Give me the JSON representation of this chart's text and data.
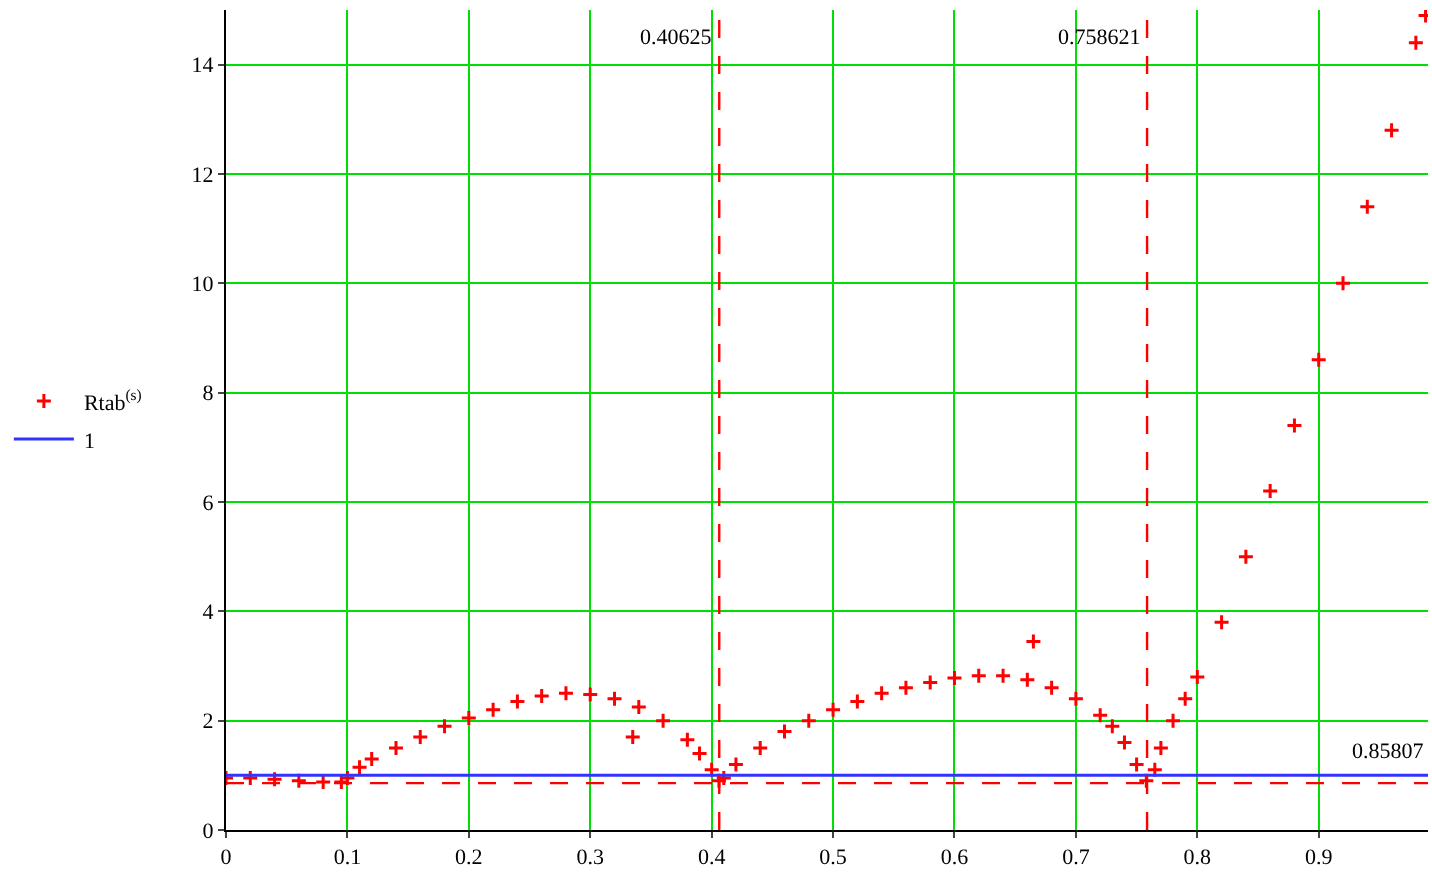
{
  "chart_data": {
    "type": "scatter",
    "series": [
      {
        "name": "Rtab$^{(s)}$",
        "color": "#ff0000",
        "marker": "cross",
        "x": [
          0.0,
          0.02,
          0.04,
          0.06,
          0.08,
          0.095,
          0.1,
          0.11,
          0.12,
          0.14,
          0.16,
          0.18,
          0.2,
          0.22,
          0.24,
          0.26,
          0.28,
          0.3,
          0.32,
          0.34,
          0.36,
          0.38,
          0.39,
          0.4,
          0.406,
          0.41,
          0.42,
          0.44,
          0.46,
          0.48,
          0.5,
          0.52,
          0.54,
          0.56,
          0.58,
          0.6,
          0.62,
          0.64,
          0.66,
          0.68,
          0.7,
          0.72,
          0.73,
          0.74,
          0.75,
          0.758,
          0.765,
          0.77,
          0.78,
          0.79,
          0.8,
          0.82,
          0.84,
          0.86,
          0.88,
          0.9,
          0.92,
          0.94,
          0.96,
          0.98,
          0.988,
          0.335,
          0.665
        ],
        "values": [
          0.95,
          0.95,
          0.93,
          0.9,
          0.88,
          0.88,
          0.95,
          1.15,
          1.3,
          1.5,
          1.7,
          1.9,
          2.05,
          2.2,
          2.35,
          2.45,
          2.5,
          2.48,
          2.4,
          2.25,
          2.0,
          1.65,
          1.4,
          1.1,
          0.9,
          0.95,
          1.2,
          1.5,
          1.8,
          2.0,
          2.2,
          2.35,
          2.5,
          2.6,
          2.7,
          2.78,
          2.82,
          2.82,
          2.75,
          2.6,
          2.4,
          2.1,
          1.9,
          1.6,
          1.2,
          0.9,
          1.1,
          1.5,
          2.0,
          2.4,
          2.8,
          3.8,
          5.0,
          6.2,
          7.4,
          8.6,
          10.0,
          11.4,
          12.8,
          14.4,
          14.9,
          1.7,
          3.45
        ]
      },
      {
        "name": "1",
        "color": "#3333ff",
        "type": "line",
        "line_style": "solid",
        "x": [
          0,
          0.99
        ],
        "values": [
          1,
          1
        ]
      }
    ],
    "xlim": [
      0,
      0.99
    ],
    "xticks": [
      0,
      0.1,
      0.2,
      0.3,
      0.4,
      0.5,
      0.6,
      0.7,
      0.8,
      0.9
    ],
    "ylim": [
      0,
      15
    ],
    "yticks": [
      0,
      2,
      4,
      6,
      8,
      10,
      12,
      14
    ],
    "grid": true,
    "legend": "left",
    "ref_lines": [
      {
        "axis": "x",
        "value": 0.40625,
        "label": "0.40625",
        "color": "#ff0000",
        "line_style": "dashed"
      },
      {
        "axis": "x",
        "value": 0.758621,
        "label": "0.758621",
        "color": "#ff0000",
        "line_style": "dashed"
      },
      {
        "axis": "y",
        "value": 0.85807,
        "label": "0.85807",
        "color": "#ff0000",
        "line_style": "dashed"
      }
    ]
  }
}
